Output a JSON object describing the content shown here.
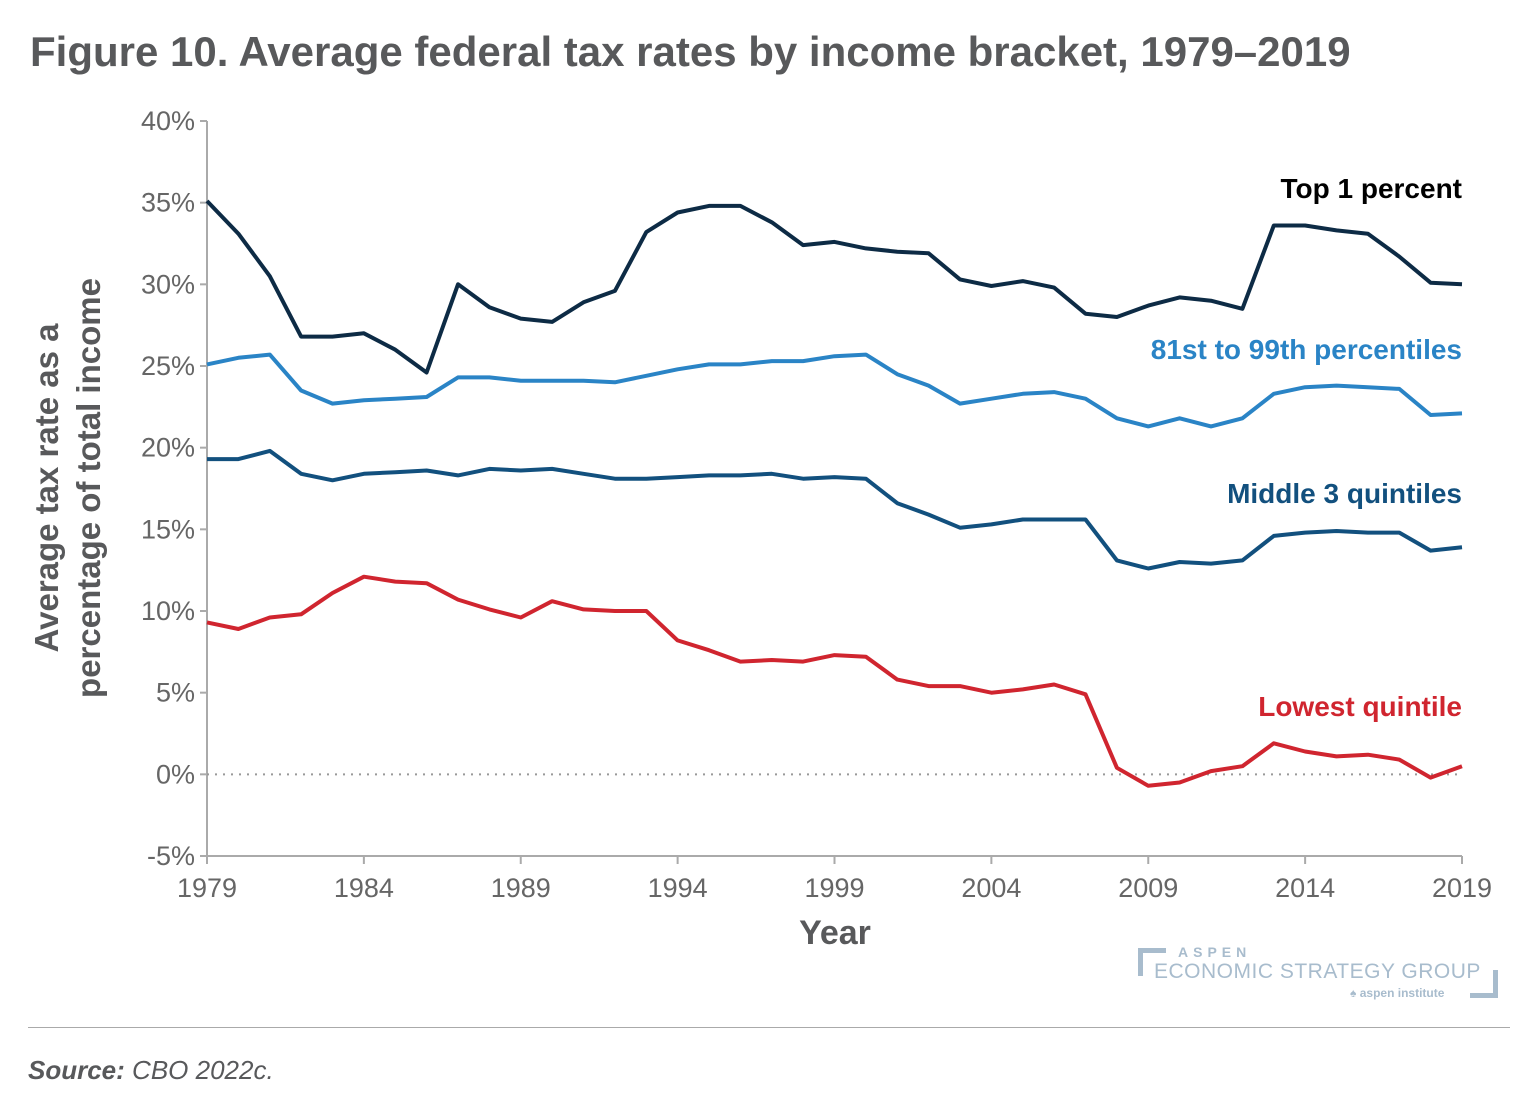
{
  "chart_data": {
    "type": "line",
    "title": "Figure 10. Average federal tax rates by income bracket, 1979–2019",
    "xlabel": "Year",
    "ylabel": "Average tax rate as a percentage of total income",
    "xlim": [
      1979,
      2019
    ],
    "ylim": [
      -5,
      40
    ],
    "x_ticks": [
      "1979",
      "1984",
      "1989",
      "1994",
      "1999",
      "2004",
      "2009",
      "2014",
      "2019"
    ],
    "y_ticks": [
      "-5%",
      "0%",
      "5%",
      "10%",
      "15%",
      "20%",
      "25%",
      "30%",
      "35%",
      "40%"
    ],
    "grid": false,
    "reference_line": {
      "y": 0,
      "style": "dotted"
    },
    "x": [
      1979,
      1980,
      1981,
      1982,
      1983,
      1984,
      1985,
      1986,
      1987,
      1988,
      1989,
      1990,
      1991,
      1992,
      1993,
      1994,
      1995,
      1996,
      1997,
      1998,
      1999,
      2000,
      2001,
      2002,
      2003,
      2004,
      2005,
      2006,
      2007,
      2008,
      2009,
      2010,
      2011,
      2012,
      2013,
      2014,
      2015,
      2016,
      2017,
      2018,
      2019
    ],
    "series": [
      {
        "name": "Top 1 percent",
        "color": "#0d2b45",
        "values": [
          35.1,
          33.1,
          30.5,
          26.8,
          26.8,
          27.0,
          26.0,
          24.6,
          30.0,
          28.6,
          27.9,
          27.7,
          28.9,
          29.6,
          33.2,
          34.4,
          34.8,
          34.8,
          33.8,
          32.4,
          32.6,
          32.2,
          32.0,
          31.9,
          30.3,
          29.9,
          30.2,
          29.8,
          28.2,
          28.0,
          28.7,
          29.2,
          29.0,
          28.5,
          33.6,
          33.6,
          33.3,
          33.1,
          31.7,
          30.1,
          30.0
        ]
      },
      {
        "name": "81st to 99th percentiles",
        "color": "#2a84c6",
        "values": [
          25.1,
          25.5,
          25.7,
          23.5,
          22.7,
          22.9,
          23.0,
          23.1,
          24.3,
          24.3,
          24.1,
          24.1,
          24.1,
          24.0,
          24.4,
          24.8,
          25.1,
          25.1,
          25.3,
          25.3,
          25.6,
          25.7,
          24.5,
          23.8,
          22.7,
          23.0,
          23.3,
          23.4,
          23.0,
          21.8,
          21.3,
          21.8,
          21.3,
          21.8,
          23.3,
          23.7,
          23.8,
          23.7,
          23.6,
          22.0,
          22.1
        ]
      },
      {
        "name": "Middle 3 quintiles",
        "color": "#12507e",
        "values": [
          19.3,
          19.3,
          19.8,
          18.4,
          18.0,
          18.4,
          18.5,
          18.6,
          18.3,
          18.7,
          18.6,
          18.7,
          18.4,
          18.1,
          18.1,
          18.2,
          18.3,
          18.3,
          18.4,
          18.1,
          18.2,
          18.1,
          16.6,
          15.9,
          15.1,
          15.3,
          15.6,
          15.6,
          15.6,
          13.1,
          12.6,
          13.0,
          12.9,
          13.1,
          14.6,
          14.8,
          14.9,
          14.8,
          14.8,
          13.7,
          13.9
        ]
      },
      {
        "name": "Lowest quintile",
        "color": "#d0252f",
        "values": [
          9.3,
          8.9,
          9.6,
          9.8,
          11.1,
          12.1,
          11.8,
          11.7,
          10.7,
          10.1,
          9.6,
          10.6,
          10.1,
          10.0,
          10.0,
          8.2,
          7.6,
          6.9,
          7.0,
          6.9,
          7.3,
          7.2,
          5.8,
          5.4,
          5.4,
          5.0,
          5.2,
          5.5,
          4.9,
          0.4,
          -0.7,
          -0.5,
          0.2,
          0.5,
          1.9,
          1.4,
          1.1,
          1.2,
          0.9,
          -0.2,
          0.5
        ]
      }
    ]
  },
  "source": {
    "label": "Source:",
    "text": "CBO 2022c."
  },
  "logo": {
    "line1": "ASPEN",
    "line2": "ECONOMIC STRATEGY GROUP",
    "line3": "aspen institute"
  }
}
